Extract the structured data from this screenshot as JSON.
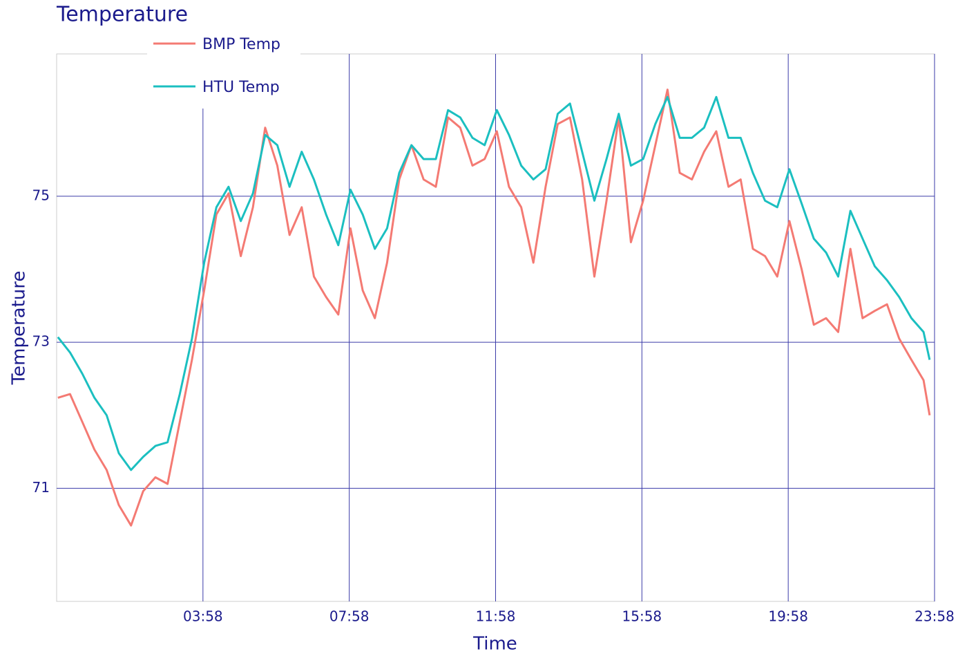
{
  "chart_data": {
    "type": "line",
    "title": "Temperature",
    "x_label": "Time",
    "y_label": "Temperature",
    "x": [
      "00:00",
      "00:20",
      "00:40",
      "01:00",
      "01:20",
      "01:40",
      "02:00",
      "02:20",
      "02:40",
      "03:00",
      "03:20",
      "03:40",
      "04:00",
      "04:20",
      "04:40",
      "05:00",
      "05:20",
      "05:40",
      "06:00",
      "06:20",
      "06:40",
      "07:00",
      "07:20",
      "07:40",
      "08:00",
      "08:20",
      "08:40",
      "09:00",
      "09:20",
      "09:40",
      "10:00",
      "10:20",
      "10:40",
      "11:00",
      "11:20",
      "11:40",
      "12:00",
      "12:20",
      "12:40",
      "13:00",
      "13:20",
      "13:40",
      "14:00",
      "14:20",
      "14:40",
      "15:00",
      "15:20",
      "15:40",
      "16:00",
      "16:20",
      "16:40",
      "17:00",
      "17:20",
      "17:40",
      "18:00",
      "18:20",
      "18:40",
      "19:00",
      "19:20",
      "19:40",
      "20:00",
      "20:20",
      "20:40",
      "21:00",
      "21:20",
      "21:40",
      "22:00",
      "22:20",
      "22:40",
      "23:00",
      "23:20",
      "23:40",
      "23:50"
    ],
    "series": [
      {
        "name": "BMP Temp",
        "color": "#f47a73",
        "values": [
          72.24,
          72.29,
          71.91,
          71.53,
          71.25,
          70.77,
          70.49,
          70.96,
          71.15,
          71.06,
          71.91,
          72.76,
          73.71,
          74.75,
          75.04,
          74.18,
          74.85,
          75.94,
          75.42,
          74.47,
          74.85,
          73.9,
          73.62,
          73.38,
          74.56,
          73.71,
          73.33,
          74.09,
          75.23,
          75.7,
          75.23,
          75.13,
          76.08,
          75.94,
          75.42,
          75.51,
          75.89,
          75.13,
          74.85,
          74.09,
          75.13,
          75.99,
          76.08,
          75.23,
          73.9,
          74.94,
          76.08,
          74.37,
          74.94,
          75.7,
          76.46,
          75.32,
          75.23,
          75.61,
          75.89,
          75.13,
          75.23,
          74.28,
          74.18,
          73.9,
          74.66,
          74.0,
          73.24,
          73.33,
          73.14,
          74.28,
          73.33,
          73.43,
          73.52,
          73.05,
          72.76,
          72.48,
          72.0
        ]
      },
      {
        "name": "HTU Temp",
        "color": "#1bbfc0",
        "values": [
          73.07,
          72.86,
          72.57,
          72.24,
          72.0,
          71.48,
          71.25,
          71.43,
          71.58,
          71.63,
          72.29,
          73.05,
          74.09,
          74.85,
          75.13,
          74.66,
          75.04,
          75.84,
          75.7,
          75.13,
          75.61,
          75.23,
          74.75,
          74.33,
          75.09,
          74.75,
          74.28,
          74.56,
          75.32,
          75.7,
          75.51,
          75.51,
          76.18,
          76.08,
          75.8,
          75.7,
          76.18,
          75.84,
          75.42,
          75.23,
          75.37,
          76.13,
          76.27,
          75.61,
          74.94,
          75.51,
          76.13,
          75.42,
          75.51,
          75.99,
          76.36,
          75.8,
          75.8,
          75.94,
          76.36,
          75.8,
          75.8,
          75.32,
          74.94,
          74.85,
          75.37,
          74.9,
          74.42,
          74.23,
          73.9,
          74.8,
          74.42,
          74.04,
          73.85,
          73.62,
          73.33,
          73.14,
          72.76
        ]
      }
    ],
    "xlim": [
      "23:58",
      "23:58"
    ],
    "xticks": [
      "03:58",
      "07:58",
      "11:58",
      "15:58",
      "19:58",
      "23:58"
    ],
    "ylim": [
      69.45,
      76.95
    ],
    "yticks": [
      71,
      73,
      75
    ],
    "grid": true,
    "legend": "top-left"
  }
}
